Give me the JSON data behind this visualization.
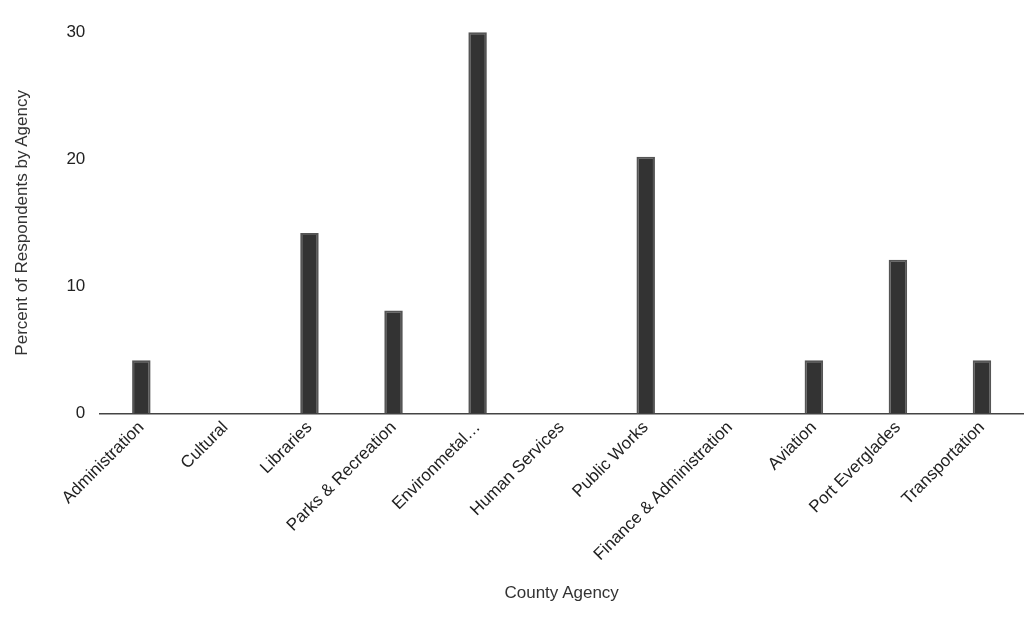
{
  "chart_data": {
    "type": "bar",
    "xlabel": "County Agency",
    "ylabel": "Percent of Respondents by Agency",
    "categories": [
      "Administration",
      "Cultural",
      "Libraries",
      "Parks & Recreation",
      "Environmetal…",
      "Human Services",
      "Public Works",
      "Finance & Administration",
      "Aviation",
      "Port Everglades",
      "Transportation"
    ],
    "values": [
      4.2,
      0,
      14.2,
      8.1,
      30,
      0,
      20.2,
      0,
      4.2,
      12.1,
      4.2
    ],
    "color": "#333333",
    "ylim": [
      0,
      30
    ],
    "yticks": [
      0,
      10,
      20,
      30
    ],
    "grid": false
  }
}
